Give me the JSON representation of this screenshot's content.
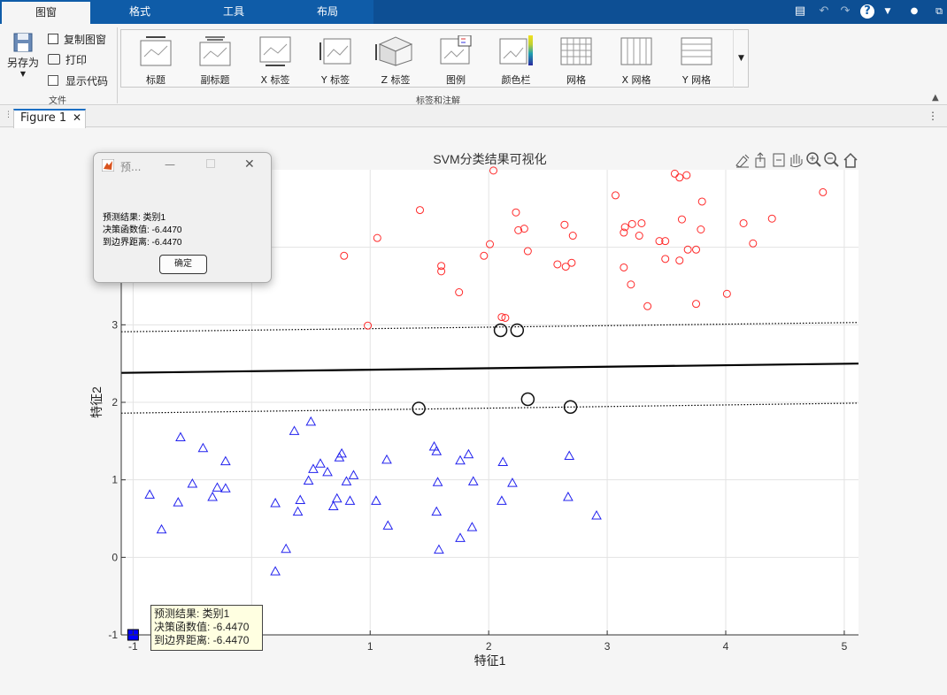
{
  "ribbon_tabs": [
    {
      "label": "图窗",
      "active": true
    },
    {
      "label": "格式"
    },
    {
      "label": "工具"
    },
    {
      "label": "布局"
    }
  ],
  "file_group": {
    "save_as": "另存为",
    "copy_figure": "复制图窗",
    "print": "打印",
    "show_code": "显示代码",
    "group_label": "文件"
  },
  "gallery": {
    "group_label": "标签和注解",
    "items": [
      "标题",
      "副标题",
      "X 标签",
      "Y 标签",
      "Z 标签",
      "图例",
      "颜色栏",
      "网格",
      "X 网格",
      "Y 网格"
    ]
  },
  "figure_tab": {
    "label": "Figure 1"
  },
  "dialog": {
    "title": "预...",
    "lines": [
      "预测结果: 类别1",
      "决策函数值: -6.4470",
      "到边界距离: -6.4470"
    ],
    "ok": "确定"
  },
  "datatip": {
    "lines": [
      "预测结果: 类别1",
      "决策函数值: -6.4470",
      "到边界距离: -6.4470"
    ]
  },
  "colors": {
    "ribbon_blue": "#0f5ca8",
    "class1": "#ff2a2a",
    "class2": "#2222ee",
    "query": "#0000ff"
  },
  "chart_data": {
    "type": "scatter",
    "title": "SVM分类结果可视化",
    "xlabel": "特征1",
    "ylabel": "特征2",
    "xlim": [
      -1.1,
      5.12
    ],
    "ylim": [
      -1.0,
      5.0
    ],
    "xticks": [
      -1,
      0,
      1,
      2,
      3,
      4,
      5
    ],
    "yticks": [
      -1,
      0,
      1,
      2,
      3,
      4
    ],
    "grid": true,
    "series": [
      {
        "marker": "circle",
        "color": "#ff2a2a",
        "points": [
          [
            2.04,
            4.99
          ],
          [
            1.42,
            4.48
          ],
          [
            3.07,
            4.67
          ],
          [
            3.57,
            4.95
          ],
          [
            3.67,
            4.93
          ],
          [
            3.61,
            4.9
          ],
          [
            4.82,
            4.71
          ],
          [
            3.8,
            4.59
          ],
          [
            2.23,
            4.45
          ],
          [
            3.15,
            4.26
          ],
          [
            3.21,
            4.3
          ],
          [
            3.29,
            4.31
          ],
          [
            3.63,
            4.36
          ],
          [
            2.64,
            4.29
          ],
          [
            2.25,
            4.22
          ],
          [
            2.3,
            4.24
          ],
          [
            3.14,
            4.19
          ],
          [
            3.27,
            4.15
          ],
          [
            2.71,
            4.15
          ],
          [
            4.15,
            4.31
          ],
          [
            4.39,
            4.37
          ],
          [
            1.06,
            4.12
          ],
          [
            3.44,
            4.08
          ],
          [
            3.49,
            4.08
          ],
          [
            3.79,
            4.23
          ],
          [
            2.01,
            4.04
          ],
          [
            4.23,
            4.05
          ],
          [
            2.33,
            3.95
          ],
          [
            3.68,
            3.97
          ],
          [
            3.75,
            3.97
          ],
          [
            0.78,
            3.89
          ],
          [
            1.96,
            3.89
          ],
          [
            2.58,
            3.78
          ],
          [
            3.49,
            3.85
          ],
          [
            3.61,
            3.83
          ],
          [
            1.6,
            3.76
          ],
          [
            2.65,
            3.75
          ],
          [
            2.7,
            3.8
          ],
          [
            3.14,
            3.74
          ],
          [
            1.6,
            3.69
          ],
          [
            3.2,
            3.52
          ],
          [
            1.75,
            3.42
          ],
          [
            4.01,
            3.4
          ],
          [
            3.75,
            3.27
          ],
          [
            3.34,
            3.24
          ],
          [
            0.98,
            2.99
          ],
          [
            2.11,
            3.1
          ],
          [
            2.14,
            3.09
          ]
        ]
      },
      {
        "marker": "triangle",
        "color": "#2222ee",
        "points": [
          [
            0.5,
            1.75
          ],
          [
            0.36,
            1.63
          ],
          [
            -0.6,
            1.55
          ],
          [
            -0.41,
            1.41
          ],
          [
            0.76,
            1.34
          ],
          [
            1.54,
            1.43
          ],
          [
            1.56,
            1.37
          ],
          [
            1.83,
            1.33
          ],
          [
            2.68,
            1.31
          ],
          [
            1.14,
            1.26
          ],
          [
            0.74,
            1.29
          ],
          [
            -0.22,
            1.24
          ],
          [
            1.76,
            1.25
          ],
          [
            2.12,
            1.23
          ],
          [
            0.58,
            1.21
          ],
          [
            0.52,
            1.14
          ],
          [
            0.64,
            1.1
          ],
          [
            0.86,
            1.06
          ],
          [
            0.48,
            0.99
          ],
          [
            1.57,
            0.97
          ],
          [
            1.87,
            0.98
          ],
          [
            2.2,
            0.96
          ],
          [
            -0.5,
            0.95
          ],
          [
            0.8,
            0.98
          ],
          [
            -0.29,
            0.9
          ],
          [
            -0.22,
            0.89
          ],
          [
            -0.86,
            0.81
          ],
          [
            -0.33,
            0.78
          ],
          [
            0.72,
            0.76
          ],
          [
            2.67,
            0.78
          ],
          [
            0.41,
            0.74
          ],
          [
            1.05,
            0.73
          ],
          [
            -0.62,
            0.71
          ],
          [
            0.83,
            0.73
          ],
          [
            2.11,
            0.73
          ],
          [
            0.2,
            0.7
          ],
          [
            0.69,
            0.66
          ],
          [
            0.39,
            0.59
          ],
          [
            1.56,
            0.59
          ],
          [
            2.91,
            0.54
          ],
          [
            -0.76,
            0.36
          ],
          [
            1.15,
            0.41
          ],
          [
            1.86,
            0.39
          ],
          [
            1.76,
            0.25
          ],
          [
            0.29,
            0.11
          ],
          [
            1.58,
            0.1
          ],
          [
            0.2,
            -0.18
          ]
        ]
      }
    ],
    "support_vectors": [
      [
        2.1,
        2.93
      ],
      [
        2.24,
        2.93
      ],
      [
        1.41,
        1.92
      ],
      [
        2.33,
        2.04
      ],
      [
        2.69,
        1.94
      ]
    ],
    "decision_boundary": [
      [
        -1.1,
        2.38
      ],
      [
        5.12,
        2.5
      ]
    ],
    "margin_upper": [
      [
        -1.1,
        2.91
      ],
      [
        5.12,
        3.03
      ]
    ],
    "margin_lower": [
      [
        -1.1,
        1.86
      ],
      [
        5.12,
        1.99
      ]
    ],
    "query_point": [
      -1.0,
      -1.0
    ]
  }
}
